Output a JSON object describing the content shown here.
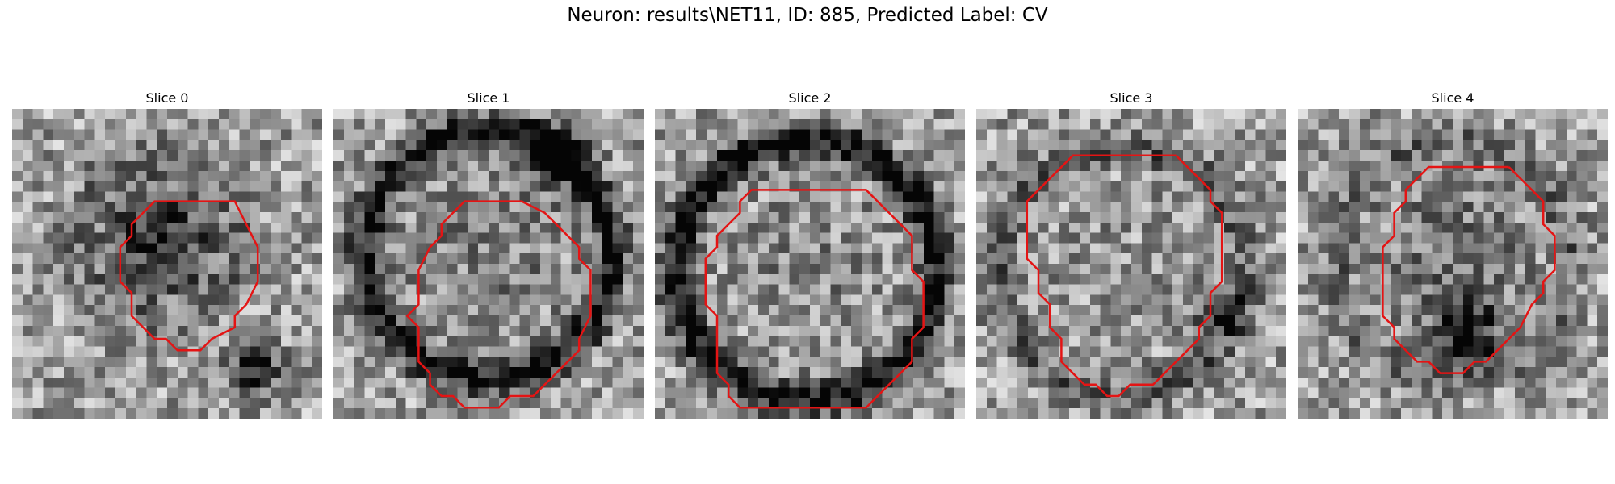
{
  "title": "Neuron: results\\NET11, ID: 885, Predicted Label: CV",
  "contour_color": "#e41414",
  "slices": [
    {
      "label": "Slice 0",
      "contour": [
        [
          10,
          3
        ],
        [
          13,
          3
        ],
        [
          14,
          5
        ],
        [
          15,
          7
        ],
        [
          15,
          10
        ],
        [
          14,
          12
        ],
        [
          13,
          13
        ],
        [
          13,
          14
        ],
        [
          11,
          15
        ],
        [
          10,
          16
        ],
        [
          8,
          16
        ],
        [
          7,
          15
        ],
        [
          6,
          15
        ],
        [
          5,
          14
        ],
        [
          4,
          13
        ],
        [
          4,
          11
        ],
        [
          3,
          10
        ],
        [
          3,
          7
        ],
        [
          4,
          6
        ],
        [
          4,
          5
        ],
        [
          5,
          4
        ],
        [
          6,
          3
        ],
        [
          10,
          3
        ]
      ]
    },
    {
      "label": "Slice 1",
      "contour": [
        [
          7,
          3
        ],
        [
          10,
          3
        ],
        [
          12,
          4
        ],
        [
          14,
          6
        ],
        [
          15,
          7
        ],
        [
          15,
          8
        ],
        [
          16,
          9
        ],
        [
          16,
          13
        ],
        [
          15,
          15
        ],
        [
          15,
          16
        ],
        [
          14,
          17
        ],
        [
          13,
          18
        ],
        [
          12,
          19
        ],
        [
          11,
          20
        ],
        [
          9,
          20
        ],
        [
          8,
          21
        ],
        [
          5,
          21
        ],
        [
          4,
          20
        ],
        [
          3,
          20
        ],
        [
          2,
          19
        ],
        [
          2,
          18
        ],
        [
          1,
          17
        ],
        [
          1,
          14
        ],
        [
          0,
          13
        ],
        [
          1,
          12
        ],
        [
          1,
          9
        ],
        [
          2,
          7
        ],
        [
          3,
          6
        ],
        [
          3,
          5
        ],
        [
          4,
          4
        ],
        [
          5,
          3
        ],
        [
          7,
          3
        ]
      ]
    },
    {
      "label": "Slice 2",
      "contour": [
        [
          5,
          2
        ],
        [
          9,
          2
        ],
        [
          12,
          2
        ],
        [
          13,
          3
        ],
        [
          14,
          4
        ],
        [
          15,
          5
        ],
        [
          16,
          6
        ],
        [
          16,
          7
        ],
        [
          16,
          8
        ],
        [
          16,
          9
        ],
        [
          17,
          10
        ],
        [
          17,
          14
        ],
        [
          16,
          15
        ],
        [
          16,
          17
        ],
        [
          15,
          18
        ],
        [
          14,
          19
        ],
        [
          13,
          20
        ],
        [
          12,
          21
        ],
        [
          1,
          21
        ],
        [
          0,
          20
        ],
        [
          0,
          19
        ],
        [
          -1,
          18
        ],
        [
          -1,
          13
        ],
        [
          -2,
          12
        ],
        [
          -2,
          8
        ],
        [
          -1,
          7
        ],
        [
          -1,
          6
        ],
        [
          0,
          5
        ],
        [
          1,
          4
        ],
        [
          1,
          3
        ],
        [
          2,
          2
        ],
        [
          5,
          2
        ]
      ]
    },
    {
      "label": "Slice 3",
      "contour": [
        [
          11,
          -1
        ],
        [
          12,
          0
        ],
        [
          13,
          1
        ],
        [
          14,
          2
        ],
        [
          14,
          3
        ],
        [
          15,
          4
        ],
        [
          15,
          5
        ],
        [
          15,
          10
        ],
        [
          14,
          11
        ],
        [
          14,
          13
        ],
        [
          13,
          14
        ],
        [
          13,
          15
        ],
        [
          12,
          16
        ],
        [
          11,
          17
        ],
        [
          10,
          18
        ],
        [
          9,
          19
        ],
        [
          7,
          19
        ],
        [
          6,
          20
        ],
        [
          5,
          20
        ],
        [
          4,
          19
        ],
        [
          3,
          19
        ],
        [
          2,
          18
        ],
        [
          1,
          17
        ],
        [
          1,
          15
        ],
        [
          0,
          14
        ],
        [
          0,
          12
        ],
        [
          -1,
          11
        ],
        [
          -1,
          10
        ],
        [
          -1,
          9
        ],
        [
          -2,
          8
        ],
        [
          -2,
          3
        ],
        [
          -1,
          2
        ],
        [
          0,
          1
        ],
        [
          1,
          0
        ],
        [
          2,
          -1
        ],
        [
          11,
          -1
        ]
      ]
    },
    {
      "label": "Slice 4",
      "contour": [
        [
          12,
          0
        ],
        [
          13,
          1
        ],
        [
          14,
          2
        ],
        [
          15,
          3
        ],
        [
          15,
          5
        ],
        [
          16,
          6
        ],
        [
          16,
          9
        ],
        [
          15,
          10
        ],
        [
          15,
          11
        ],
        [
          14,
          12
        ],
        [
          13,
          14
        ],
        [
          12,
          15
        ],
        [
          11,
          16
        ],
        [
          10,
          17
        ],
        [
          9,
          17
        ],
        [
          8,
          18
        ],
        [
          6,
          18
        ],
        [
          5,
          17
        ],
        [
          4,
          17
        ],
        [
          3,
          16
        ],
        [
          2,
          15
        ],
        [
          2,
          14
        ],
        [
          1,
          13
        ],
        [
          1,
          7
        ],
        [
          2,
          6
        ],
        [
          2,
          4
        ],
        [
          3,
          3
        ],
        [
          3,
          2
        ],
        [
          4,
          1
        ],
        [
          5,
          0
        ],
        [
          12,
          0
        ]
      ]
    }
  ]
}
